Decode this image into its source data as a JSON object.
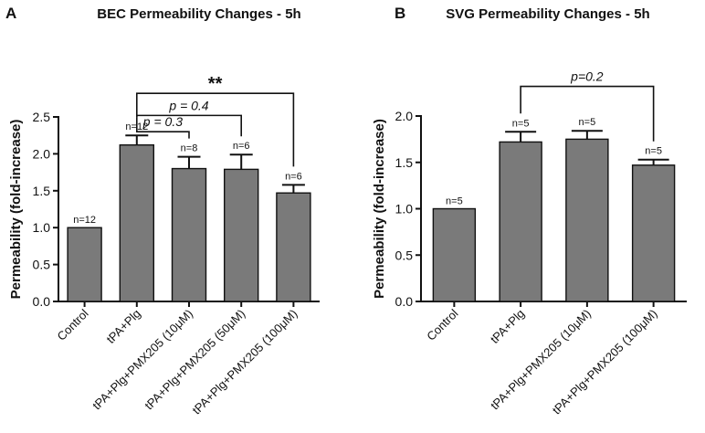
{
  "chart_data": [
    {
      "type": "bar",
      "panel": "A",
      "title": "BEC Permeability Changes - 5h",
      "ylabel": "Permeability (fold-increase)",
      "xlabel": "",
      "ylim": [
        0,
        2.5
      ],
      "yticks": [
        "0.0",
        "0.5",
        "1.0",
        "1.5",
        "2.0",
        "2.5"
      ],
      "categories": [
        "Control",
        "tPA+Plg",
        "tPA+Plg+PMX205 (10μM)",
        "tPA+Plg+PMX205 (50μM)",
        "tPA+Plg+PMX205 (100μM)"
      ],
      "values": [
        1.0,
        2.12,
        1.8,
        1.79,
        1.47
      ],
      "errors": [
        0.0,
        0.13,
        0.16,
        0.2,
        0.11
      ],
      "n_labels": [
        "n=12",
        "n=12",
        "n=8",
        "n=6",
        "n=6"
      ],
      "comparisons": [
        {
          "from": 1,
          "to": 4,
          "label": "**",
          "level": 2.82
        },
        {
          "from": 1,
          "to": 3,
          "label": "p = 0.4",
          "level": 2.52
        },
        {
          "from": 1,
          "to": 2,
          "label": "p = 0.3",
          "level": 2.3
        }
      ]
    },
    {
      "type": "bar",
      "panel": "B",
      "title": "SVG Permeability Changes - 5h",
      "ylabel": "Permeability (fold-increase)",
      "xlabel": "",
      "ylim": [
        0,
        2.0
      ],
      "yticks": [
        "0.0",
        "0.5",
        "1.0",
        "1.5",
        "2.0"
      ],
      "categories": [
        "Control",
        "tPA+Plg",
        "tPA+Plg+PMX205 (10μM)",
        "tPA+Plg+PMX205 (100μM)"
      ],
      "values": [
        1.0,
        1.72,
        1.75,
        1.47
      ],
      "errors": [
        0.0,
        0.11,
        0.09,
        0.06
      ],
      "n_labels": [
        "n=5",
        "n=5",
        "n=5",
        "n=5"
      ],
      "comparisons": [
        {
          "from": 1,
          "to": 3,
          "label": "p=0.2",
          "level": 2.32
        }
      ]
    }
  ]
}
